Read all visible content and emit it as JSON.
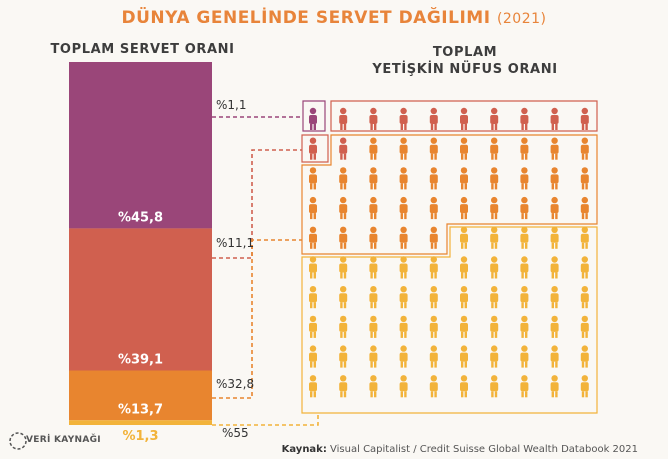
{
  "title": "DÜNYA GENELİNDE SERVET DAĞILIMI",
  "year": "(2021)",
  "left_heading": "TOPLAM SERVET ORANI",
  "right_heading_line1": "TOPLAM",
  "right_heading_line2": "YETİŞKİN NÜFUS ORANI",
  "source_label": "Kaynak:",
  "source_text": "Visual Capitalist / Credit Suisse Global Wealth Databook 2021",
  "logo_text": "VERİ KAYNAĞI",
  "colors": {
    "purple": "#9a4679",
    "red": "#d0604f",
    "orange": "#e8852f",
    "yellow": "#f2b33a",
    "title": "#e8843a"
  },
  "chart_data": {
    "type": "bar",
    "stacked": true,
    "categories": [
      "Servet",
      "Nüfus"
    ],
    "series": [
      {
        "wealth_label": "%45,8",
        "wealth": 45.8,
        "population_label": "%1,1",
        "population": 1.1,
        "color": "#9a4679",
        "people_icons": 1
      },
      {
        "wealth_label": "%39,1",
        "wealth": 39.1,
        "population_label": "%11,1",
        "population": 11.1,
        "color": "#d0604f",
        "people_icons": 11
      },
      {
        "wealth_label": "%13,7",
        "wealth": 13.7,
        "population_label": "%32,8",
        "population": 32.8,
        "color": "#e8852f",
        "people_icons": 33
      },
      {
        "wealth_label": "%1,3",
        "wealth": 1.3,
        "population_label": "%55",
        "population": 55,
        "color": "#f2b33a",
        "people_icons": 55
      }
    ]
  }
}
